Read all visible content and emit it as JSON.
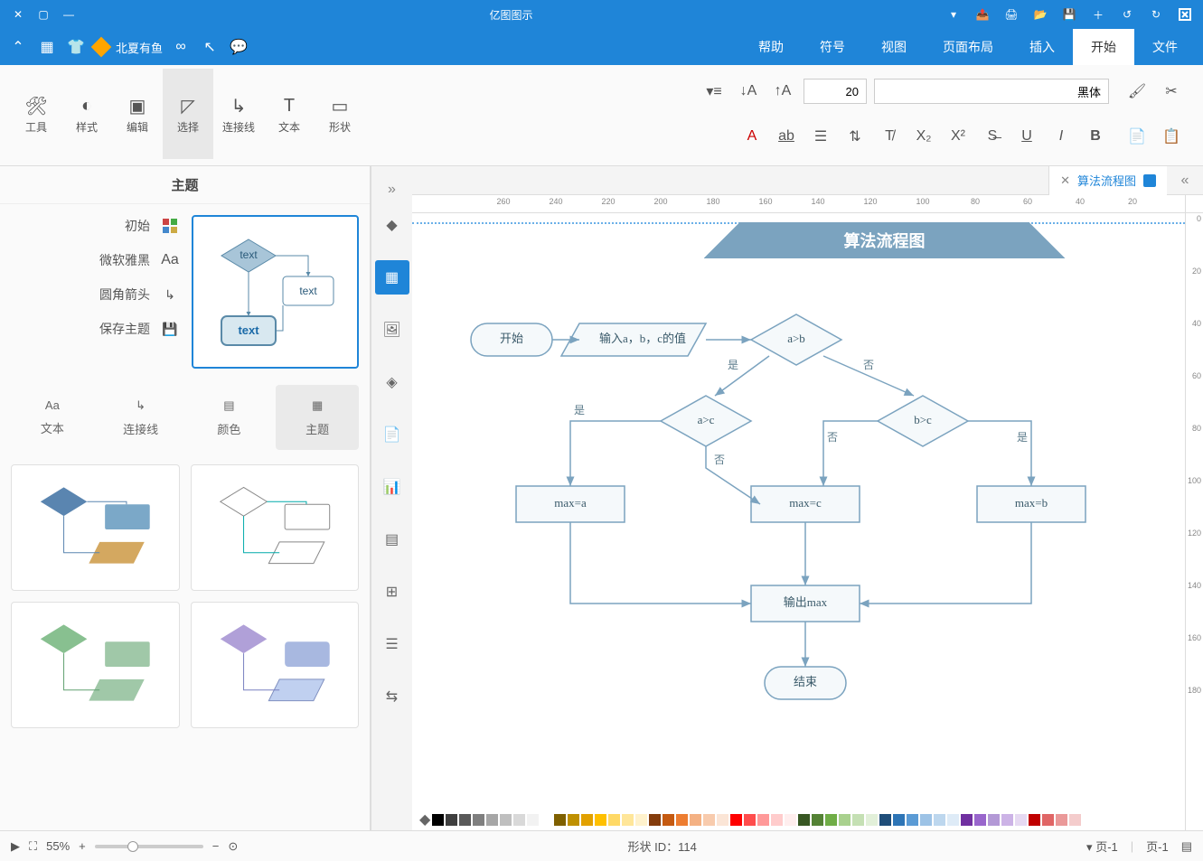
{
  "titlebar": {
    "app_title": "亿图图示",
    "icons": [
      "redo",
      "undo",
      "add",
      "save",
      "open",
      "print",
      "export",
      "dropdown"
    ],
    "win_controls": [
      "min",
      "max",
      "close"
    ]
  },
  "menu": {
    "items": [
      "文件",
      "开始",
      "插入",
      "页面布局",
      "视图",
      "符号",
      "帮助"
    ],
    "active_index": 1,
    "right": {
      "share": "北夏有鱼",
      "chevron": "▾"
    }
  },
  "ribbon": {
    "font_name": "黑体",
    "font_size": "20",
    "groups_right": [
      {
        "label": "工具"
      },
      {
        "label": "样式"
      },
      {
        "label": "编辑"
      },
      {
        "label": "选择",
        "selected": true
      },
      {
        "label": "连接线"
      },
      {
        "label": "文本"
      },
      {
        "label": "形状"
      }
    ]
  },
  "doc_tab": {
    "title": "算法流程图"
  },
  "ruler_h": [
    20,
    40,
    60,
    80,
    100,
    120,
    140,
    160,
    180,
    200,
    220,
    240,
    260
  ],
  "ruler_v": [
    0,
    20,
    40,
    60,
    80,
    100,
    120,
    140,
    160,
    180
  ],
  "flow": {
    "title": "算法流程图",
    "stroke": "#7ba3bf",
    "fill": "#f5f9fb",
    "nodes": {
      "start": {
        "label": "开始"
      },
      "input": {
        "label": "输入a，b，c的值"
      },
      "d1": {
        "label": "a>b"
      },
      "d2": {
        "label": "a>c"
      },
      "d3": {
        "label": "b>c"
      },
      "r1": {
        "label": "max=a"
      },
      "r2": {
        "label": "max=c"
      },
      "r3": {
        "label": "max=b"
      },
      "out": {
        "label": "输出max"
      },
      "end": {
        "label": "结束"
      }
    },
    "edge_labels": {
      "yes": "是",
      "no": "否"
    }
  },
  "theme_panel": {
    "title": "主题",
    "opts": [
      "初始",
      "微软雅黑",
      "圆角箭头",
      "保存主题"
    ],
    "cats": [
      "主题",
      "颜色",
      "连接线",
      "文本"
    ],
    "cats_sel": 0,
    "preview_texts": [
      "text",
      "text",
      "text"
    ]
  },
  "color_bar": [
    "#000000",
    "#3f3f3f",
    "#595959",
    "#7f7f7f",
    "#a6a6a6",
    "#bfbfbf",
    "#d9d9d9",
    "#f2f2f2",
    "#ffffff",
    "#7f6000",
    "#bf9000",
    "#e2a100",
    "#ffc000",
    "#ffd966",
    "#ffe699",
    "#fff2cc",
    "#843c0c",
    "#c55a11",
    "#ed7d31",
    "#f4b183",
    "#f8cbad",
    "#fbe5d6",
    "#ff0000",
    "#ff4d4d",
    "#ff9999",
    "#ffcccc",
    "#ffeeee",
    "#385723",
    "#548235",
    "#70ad47",
    "#a9d18e",
    "#c5e0b4",
    "#e2f0d9",
    "#1f4e79",
    "#2e75b6",
    "#5b9bd5",
    "#9dc3e6",
    "#bdd7ee",
    "#deebf7",
    "#7030a0",
    "#9966cc",
    "#b399d6",
    "#ccb3e6",
    "#e6d9f2",
    "#c00000",
    "#e06666",
    "#ea9999",
    "#f4cccc"
  ],
  "statusbar": {
    "page_tab1": "页-1",
    "page_tab2": "页-1",
    "shape_id": "形状 ID：114",
    "zoom": "55%"
  }
}
